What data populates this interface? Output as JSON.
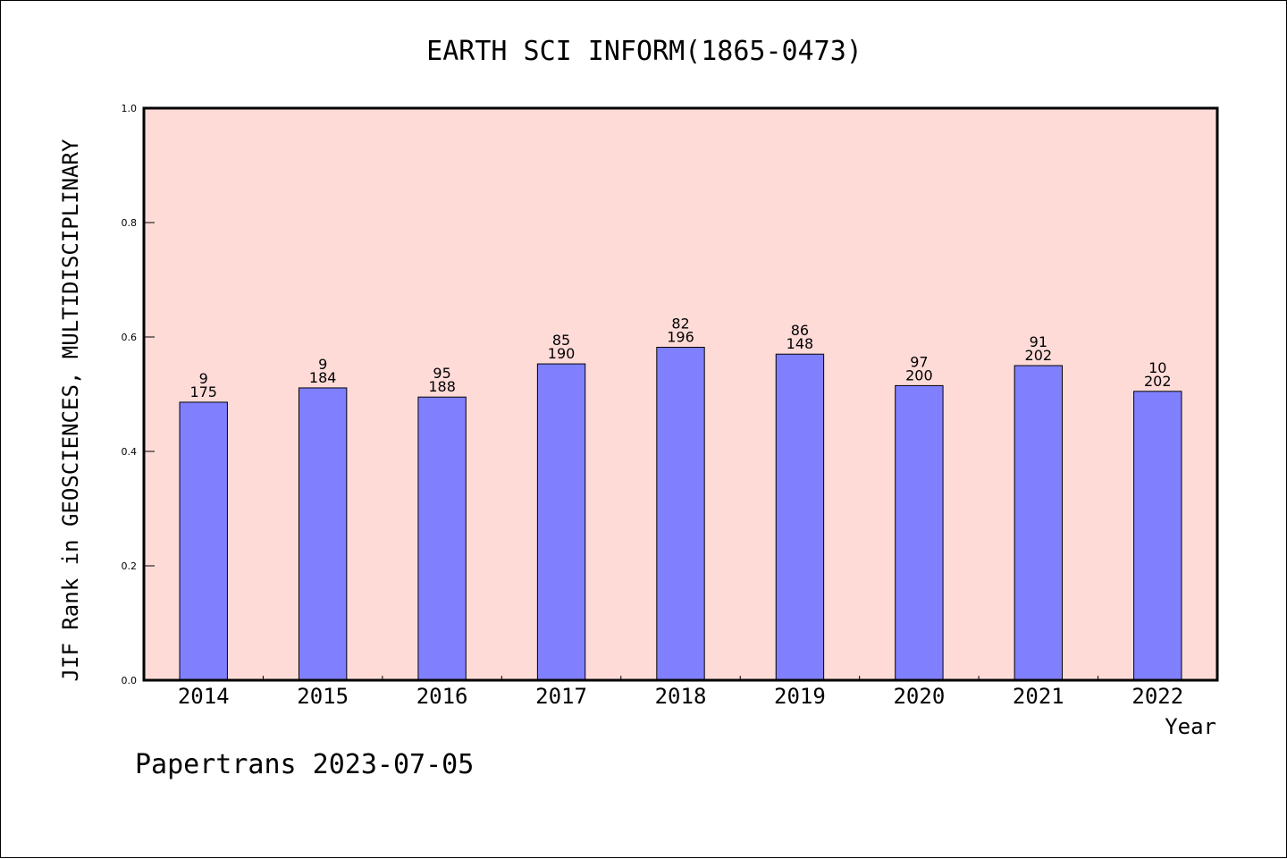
{
  "chart_data": {
    "type": "bar",
    "title": "EARTH SCI INFORM(1865-0473)",
    "xlabel": "Year",
    "ylabel": "JIF Rank in GEOSCIENCES, MULTIDISCIPLINARY",
    "ylim": [
      0,
      1.0
    ],
    "yticks": [
      "0.0",
      "0.2",
      "0.4",
      "0.6",
      "0.8",
      "1.0"
    ],
    "categories": [
      "2014",
      "2015",
      "2016",
      "2017",
      "2018",
      "2019",
      "2020",
      "2021",
      "2022"
    ],
    "values": [
      0.486,
      0.511,
      0.495,
      0.553,
      0.582,
      0.57,
      0.515,
      0.55,
      0.505
    ],
    "labels_top": [
      "9",
      "9",
      "95",
      "85",
      "82",
      "86",
      "97",
      "91",
      "10"
    ],
    "labels_bottom": [
      "175",
      "184",
      "188",
      "190",
      "196",
      "148",
      "200",
      "202",
      "202"
    ],
    "grid": false,
    "colors": {
      "bar": "#8080ff",
      "plot_bg": "#ffdbd8",
      "axis": "#000000"
    }
  },
  "footer": "Papertrans 2023-07-05"
}
